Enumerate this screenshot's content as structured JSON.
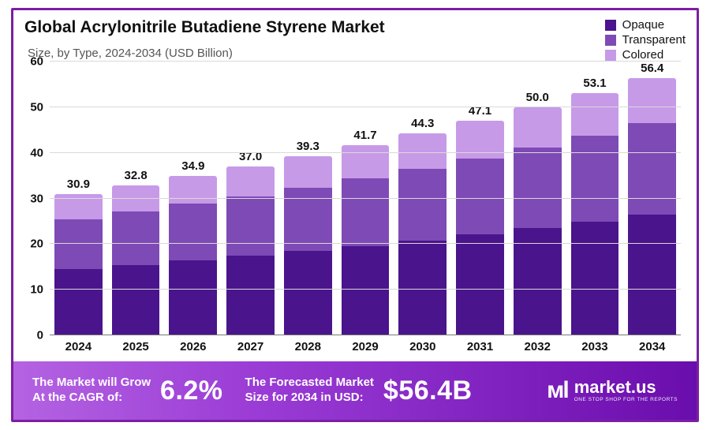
{
  "title": "Global Acrylonitrile Butadiene Styrene Market",
  "subtitle": "Size, by Type, 2024-2034 (USD Billion)",
  "chart": {
    "type": "stacked-bar",
    "ylim": [
      0,
      60
    ],
    "ytick_step": 10,
    "grid_color": "#d9d9d9",
    "axis_color": "#777777",
    "background_color": "#ffffff",
    "label_fontsize": 15,
    "label_fontweight": 700,
    "series": [
      {
        "name": "Opaque",
        "color": "#4a148c"
      },
      {
        "name": "Transparent",
        "color": "#7e4ab5"
      },
      {
        "name": "Colored",
        "color": "#c79ae8"
      }
    ],
    "categories": [
      "2024",
      "2025",
      "2026",
      "2027",
      "2028",
      "2029",
      "2030",
      "2031",
      "2032",
      "2033",
      "2034"
    ],
    "totals": [
      30.9,
      32.8,
      34.9,
      37.0,
      39.3,
      41.7,
      44.3,
      47.1,
      50.0,
      53.1,
      56.4
    ],
    "stacks": [
      [
        14.5,
        11.0,
        5.4
      ],
      [
        15.4,
        11.7,
        5.7
      ],
      [
        16.4,
        12.4,
        6.1
      ],
      [
        17.4,
        13.1,
        6.5
      ],
      [
        18.5,
        13.9,
        6.9
      ],
      [
        19.6,
        14.8,
        7.3
      ],
      [
        20.8,
        15.7,
        7.8
      ],
      [
        22.1,
        16.7,
        8.3
      ],
      [
        23.5,
        17.7,
        8.8
      ],
      [
        24.9,
        18.8,
        9.4
      ],
      [
        26.5,
        20.0,
        9.9
      ]
    ]
  },
  "footer": {
    "gradient": [
      "#b463e2",
      "#9b3cd6",
      "#6a0dad"
    ],
    "cagr_label_line1": "The Market will Grow",
    "cagr_label_line2": "At the CAGR of:",
    "cagr_value": "6.2%",
    "forecast_label_line1": "The Forecasted Market",
    "forecast_label_line2": "Size for 2034 in USD:",
    "forecast_value": "$56.4B",
    "brand_glyph": "ᴍl",
    "brand_name": "market.us",
    "brand_tagline": "ONE STOP SHOP FOR THE REPORTS"
  },
  "frame_border_color": "#7b1fa2"
}
